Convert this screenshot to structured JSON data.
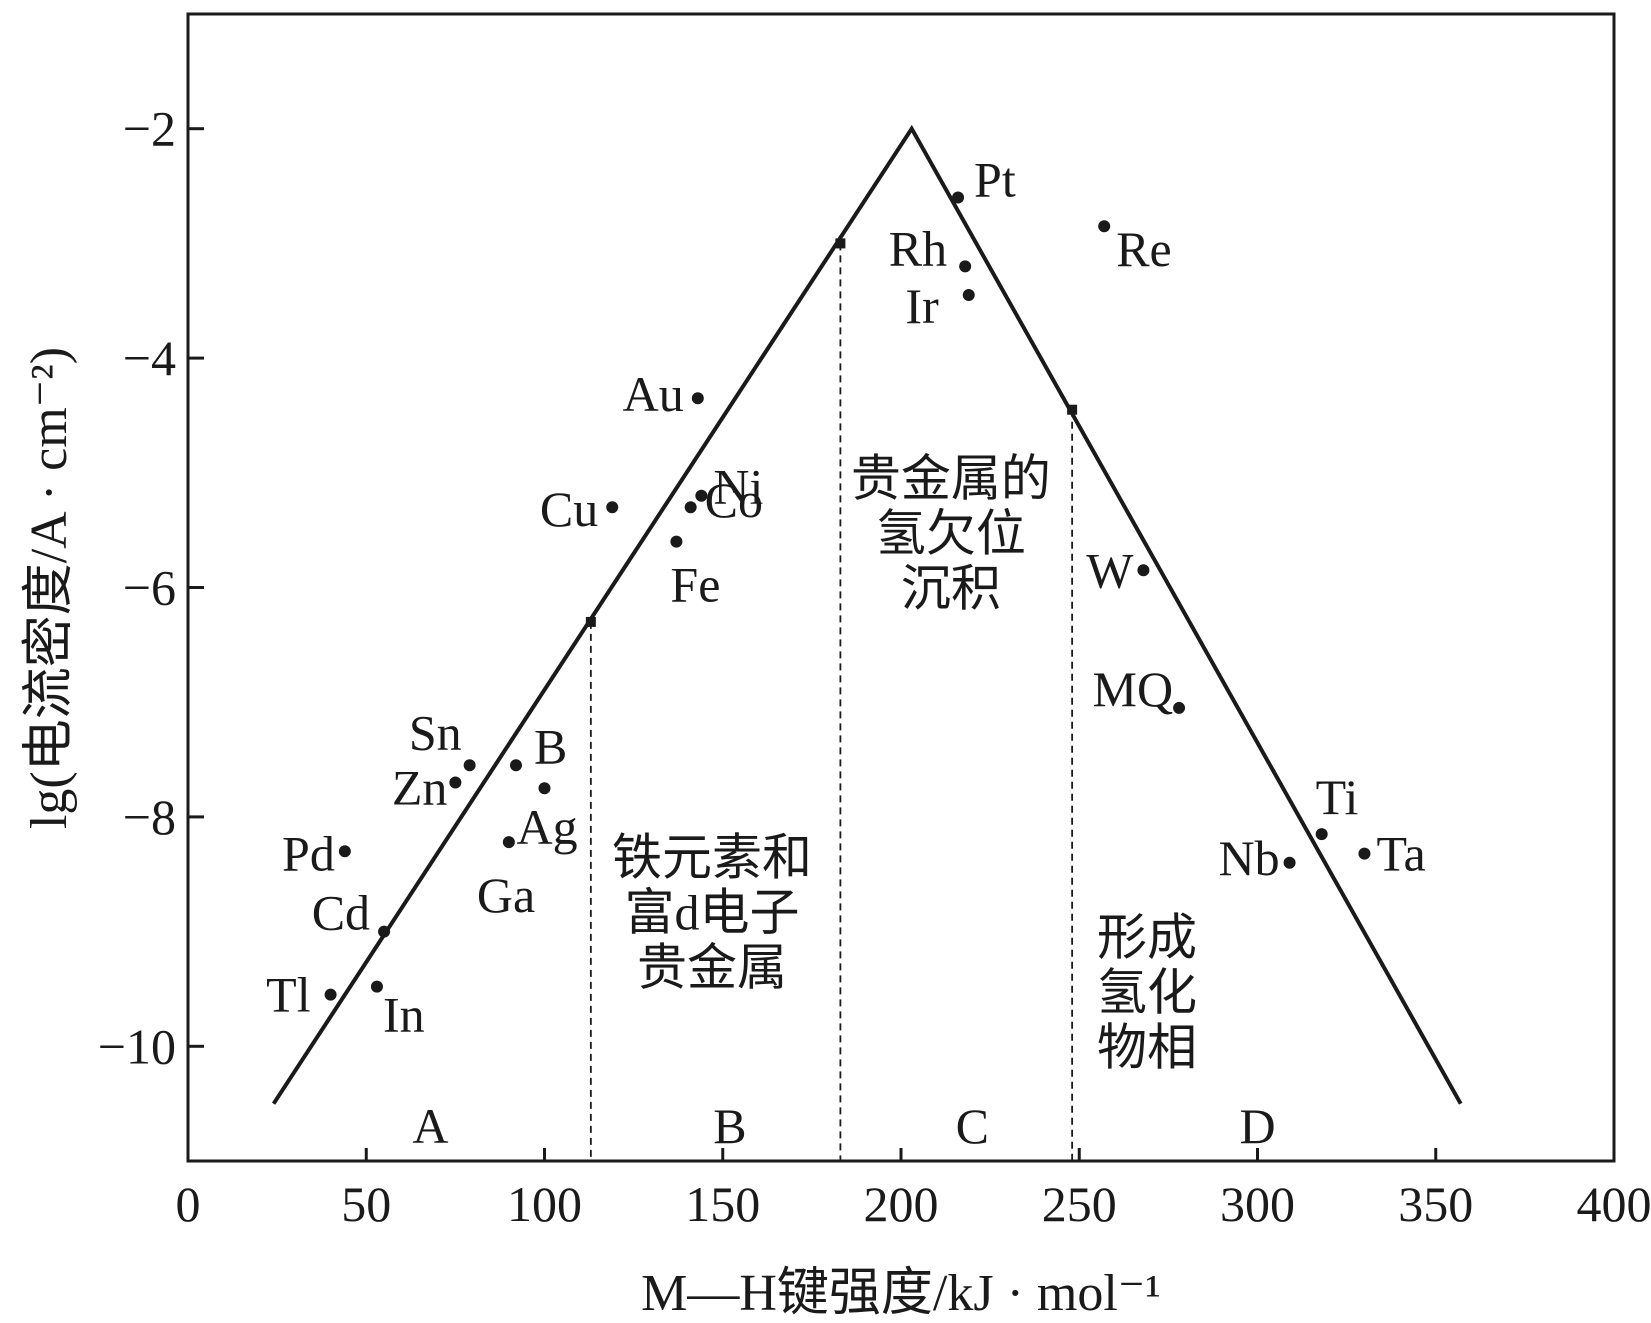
{
  "chart_data": {
    "type": "scatter",
    "title": "",
    "xlabel": "M—H键强度/kJ · mol⁻¹",
    "ylabel": "lg(电流密度/A · cm⁻²)",
    "xlim": [
      0,
      400
    ],
    "ylim": [
      -11,
      -1
    ],
    "x_ticks": [
      0,
      50,
      100,
      150,
      200,
      250,
      300,
      350,
      400
    ],
    "x_tick_labels": [
      "0",
      "50",
      "100",
      "150",
      "200",
      "250",
      "300",
      "350",
      "400"
    ],
    "y_ticks": [
      -10,
      -8,
      -6,
      -4,
      -2
    ],
    "y_tick_labels": [
      "−10",
      "−8",
      "−6",
      "−4",
      "−2"
    ],
    "grid": false,
    "volcano_line": [
      [
        24,
        -10.5
      ],
      [
        203,
        -2.0
      ],
      [
        357,
        -10.5
      ]
    ],
    "region_boundaries": [
      {
        "x": 113,
        "y": -6.3
      },
      {
        "x": 183,
        "y": -3.0
      },
      {
        "x": 248,
        "y": -4.45
      }
    ],
    "points": [
      {
        "label": "Pt",
        "x": 216,
        "y": -2.6
      },
      {
        "label": "Rh",
        "x": 218,
        "y": -3.2
      },
      {
        "label": "Ir",
        "x": 219,
        "y": -3.45
      },
      {
        "label": "Re",
        "x": 257,
        "y": -2.85
      },
      {
        "label": "Au",
        "x": 143,
        "y": -4.35
      },
      {
        "label": "Ni",
        "x": 144,
        "y": -5.2
      },
      {
        "label": "Co",
        "x": 141,
        "y": -5.3
      },
      {
        "label": "Fe",
        "x": 137,
        "y": -5.6
      },
      {
        "label": "Cu",
        "x": 119,
        "y": -5.3
      },
      {
        "label": "W",
        "x": 268,
        "y": -5.85
      },
      {
        "label": "MQ",
        "x": 278,
        "y": -7.05
      },
      {
        "label": "Sn",
        "x": 79,
        "y": -7.55
      },
      {
        "label": "B",
        "x": 92,
        "y": -7.55
      },
      {
        "label": "Zn",
        "x": 75,
        "y": -7.7
      },
      {
        "label": "Ag",
        "x": 100,
        "y": -7.75
      },
      {
        "label": "Pd",
        "x": 44,
        "y": -8.3
      },
      {
        "label": "Ga",
        "x": 90,
        "y": -8.22
      },
      {
        "label": "Ti",
        "x": 318,
        "y": -8.15
      },
      {
        "label": "Nb",
        "x": 309,
        "y": -8.4
      },
      {
        "label": "Ta",
        "x": 330,
        "y": -8.32
      },
      {
        "label": "Cd",
        "x": 55,
        "y": -9.0
      },
      {
        "label": "Tl",
        "x": 40,
        "y": -9.55
      },
      {
        "label": "In",
        "x": 53,
        "y": -9.48
      }
    ],
    "regions": [
      {
        "letter": "A",
        "lines": []
      },
      {
        "letter": "B",
        "lines": [
          "铁元素和",
          "富d电子",
          "贵金属"
        ]
      },
      {
        "letter": "C",
        "lines": [
          "贵金属的",
          "氢欠位",
          "沉积"
        ]
      },
      {
        "letter": "D",
        "lines": [
          "形成",
          "氢化",
          "物相"
        ]
      }
    ]
  }
}
